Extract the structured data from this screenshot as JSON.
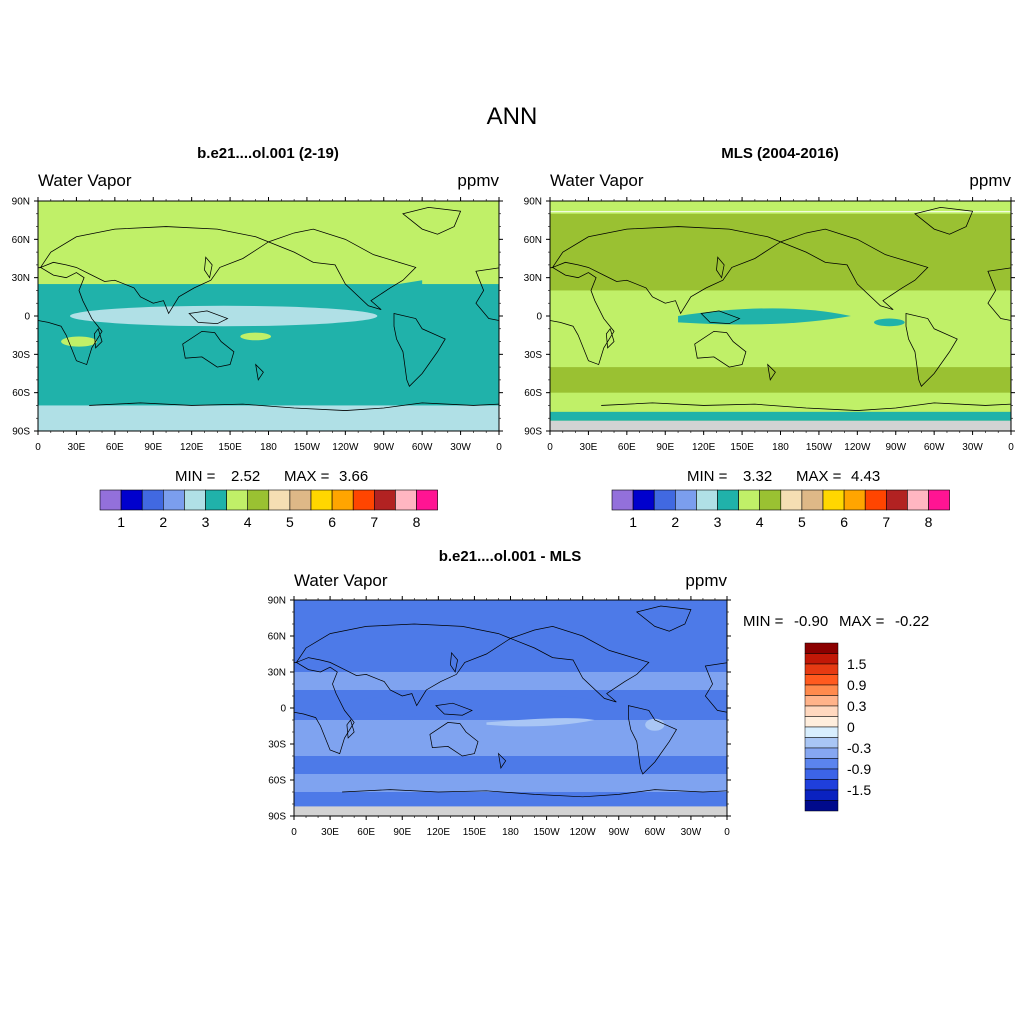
{
  "figure_title": "ANN",
  "lon_ticks": [
    "0",
    "30E",
    "60E",
    "90E",
    "120E",
    "150E",
    "180",
    "150W",
    "120W",
    "90W",
    "60W",
    "30W",
    "0"
  ],
  "lat_ticks": [
    "90N",
    "60N",
    "30N",
    "0",
    "30S",
    "60S",
    "90S"
  ],
  "panels": [
    {
      "id": "model",
      "title": "b.e21....ol.001 (2-19)",
      "left_label": "Water Vapor",
      "right_label": "ppmv",
      "min_label": "MIN =",
      "min_value": "2.52",
      "max_label": "MAX =",
      "max_value": "3.66",
      "field": {
        "base": "#20b2aa",
        "bands": [
          {
            "lat": [
              90,
              25
            ],
            "color": "#c0f068"
          },
          {
            "lat": [
              -70,
              -90
            ],
            "color": "#b0e0e6"
          }
        ]
      }
    },
    {
      "id": "obs",
      "title": "MLS (2004-2016)",
      "left_label": "Water Vapor",
      "right_label": "ppmv",
      "min_label": "MIN =",
      "min_value": "3.32",
      "max_label": "MAX =",
      "max_value": "4.43",
      "field": {
        "base": "#c0f068",
        "bands": [
          {
            "lat": [
              82,
              82
            ],
            "color": "#ffffff"
          },
          {
            "lat": [
              80,
              20
            ],
            "color": "#9ac132"
          },
          {
            "lat": [
              -40,
              -60
            ],
            "color": "#9ac132"
          },
          {
            "lat": [
              -75,
              -82
            ],
            "color": "#20b2aa"
          },
          {
            "lat": [
              -82,
              -90
            ],
            "color": "#d3d3d3"
          }
        ]
      }
    },
    {
      "id": "diff",
      "title": "b.e21....ol.001 - MLS",
      "left_label": "Water Vapor",
      "right_label": "ppmv",
      "min_label": "MIN =",
      "min_value": "-0.90",
      "max_label": "MAX =",
      "max_value": "-0.22",
      "field": {
        "base": "#4d7ae8",
        "bands": [
          {
            "lat": [
              30,
              15
            ],
            "color": "#7fa3f0"
          },
          {
            "lat": [
              -10,
              -40
            ],
            "color": "#7fa3f0"
          },
          {
            "lat": [
              -55,
              -70
            ],
            "color": "#7fa3f0"
          },
          {
            "lat": [
              -82,
              -90
            ],
            "color": "#d3d3d3"
          }
        ]
      }
    }
  ],
  "abs_colorbar": {
    "colors": [
      "#9370db",
      "#0000cd",
      "#4169e1",
      "#7b9eee",
      "#b0e0e6",
      "#20b2aa",
      "#c0f068",
      "#9ac132",
      "#f5deb3",
      "#deb887",
      "#ffd700",
      "#ffa500",
      "#ff4500",
      "#b22222",
      "#ffb6c1",
      "#ff1493"
    ],
    "labels": [
      "1",
      "2",
      "3",
      "4",
      "5",
      "6",
      "7",
      "8"
    ]
  },
  "diff_colorbar": {
    "colors": [
      "#8b0000",
      "#c21807",
      "#e63a12",
      "#ff5a1f",
      "#ff8a4d",
      "#ffb38a",
      "#ffd8bf",
      "#ffeedd",
      "#d8eefe",
      "#a9c6f5",
      "#86a7f2",
      "#5b84ee",
      "#3c64e8",
      "#1f3fdc",
      "#0a22c0",
      "#000a8c"
    ],
    "labels": [
      "1.5",
      "0.9",
      "0.3",
      "0",
      "-0.3",
      "-0.9",
      "-1.5"
    ]
  }
}
